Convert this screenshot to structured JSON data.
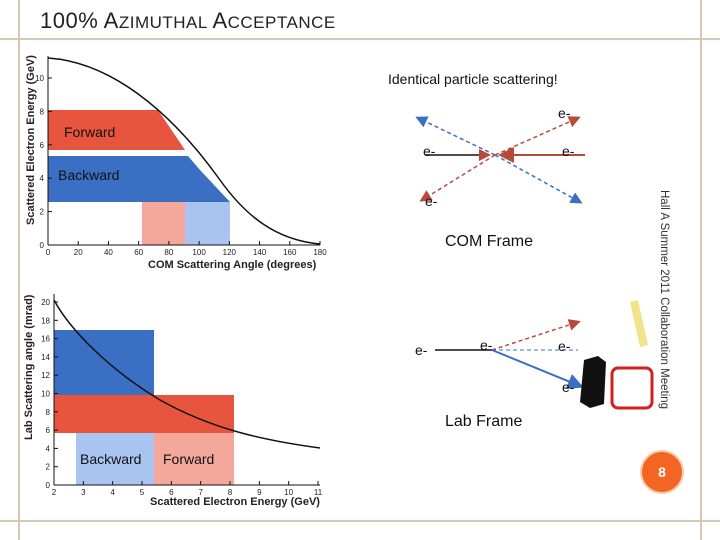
{
  "slide": {
    "title_first": "100% A",
    "title_rest": "ZIMUTHAL ",
    "title_second": "A",
    "title_rest2": "CCEPTANCE",
    "side_text": "Hall A Summer 2011 Collaboration Meeting",
    "page_number": "8"
  },
  "top_plot": {
    "ylabel": "Scattered Electron Energy (GeV)",
    "xlabel": "COM Scattering Angle (degrees)",
    "yticks": [
      "0",
      "2",
      "4",
      "6",
      "8",
      "10"
    ],
    "xticks": [
      "0",
      "20",
      "40",
      "60",
      "80",
      "100",
      "120",
      "140",
      "160",
      "180"
    ],
    "forward_label": "Forward",
    "backward_label": "Backward"
  },
  "bottom_plot": {
    "ylabel": "Lab Scattering angle (mrad)",
    "xlabel": "Scattered Electron Energy (GeV)",
    "yticks": [
      "0",
      "2",
      "4",
      "6",
      "8",
      "10",
      "12",
      "14",
      "16",
      "18",
      "20"
    ],
    "xticks": [
      "2",
      "3",
      "4",
      "5",
      "6",
      "7",
      "8",
      "9",
      "10",
      "11"
    ],
    "backward_label": "Backward",
    "forward_label": "Forward"
  },
  "diagram": {
    "headline": "Identical particle scattering!",
    "com_frame": "COM Frame",
    "lab_frame": "Lab Frame",
    "electron": "e-",
    "colors": {
      "blue": "#3a6fc4",
      "red": "#e8553f",
      "light_blue": "#a9c4f0",
      "light_red": "#f4a79b",
      "yellow": "#f3e38a"
    }
  }
}
